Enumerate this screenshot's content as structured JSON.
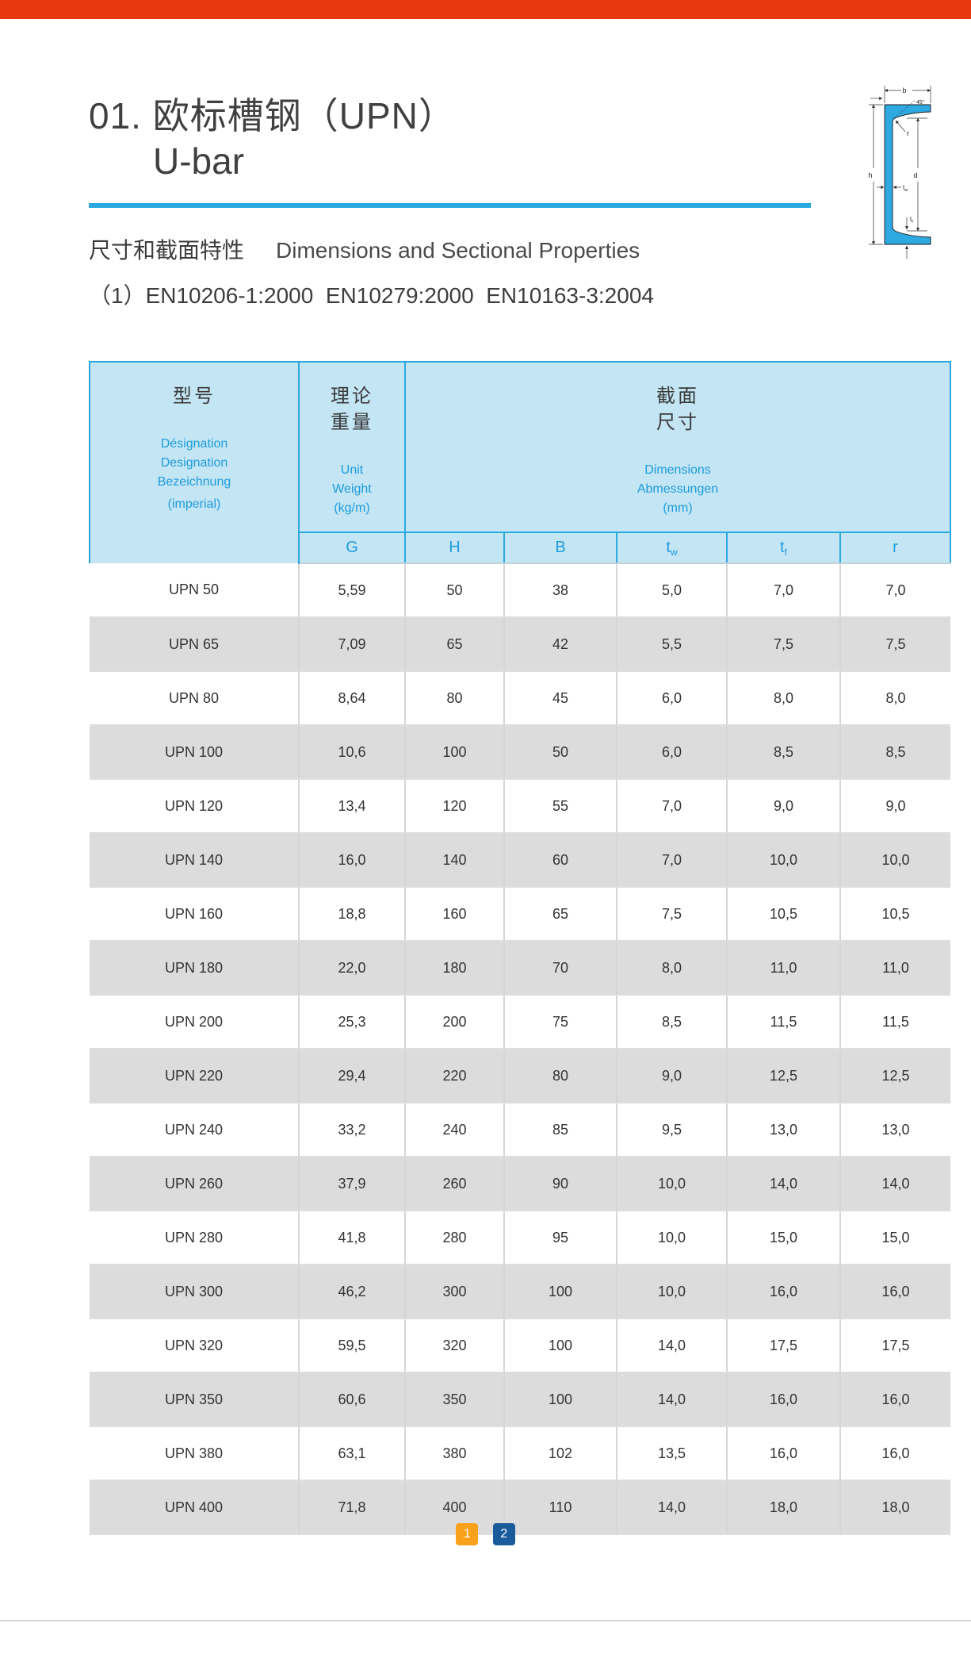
{
  "header": {
    "title_cn": "01. 欧标槽钢（UPN）",
    "title_en": "U-bar"
  },
  "section": {
    "heading_cn": "尺寸和截面特性",
    "heading_en": "Dimensions and Sectional Properties",
    "standards": "（1）EN10206-1:2000  EN10279:2000  EN10163-3:2004"
  },
  "diagram": {
    "b": "b",
    "h": "h",
    "d": "d",
    "r": "r",
    "angle": "45°",
    "tw_main": "t",
    "tw_sub": "w",
    "tf_main": "t",
    "tf_sub": "f",
    "fill_color": "#2fa9e1"
  },
  "table": {
    "header": {
      "designation_cn": "型号",
      "designation_sub": [
        "Désignation",
        "Designation",
        "Bezeichnung",
        "(imperial)"
      ],
      "weight_cn": [
        "理论",
        "重量"
      ],
      "weight_sub": [
        "Unit",
        "Weight",
        "(kg/m)"
      ],
      "dimensions_cn": [
        "截面",
        "尺寸"
      ],
      "dimensions_sub": [
        "Dimensions",
        "Abmessungen",
        "(mm)"
      ]
    },
    "columns": [
      {
        "main": "G",
        "sub": ""
      },
      {
        "main": "H",
        "sub": ""
      },
      {
        "main": "B",
        "sub": ""
      },
      {
        "main": "t",
        "sub": "w"
      },
      {
        "main": "t",
        "sub": "f"
      },
      {
        "main": "r",
        "sub": ""
      }
    ],
    "rows": [
      {
        "name": "UPN 50",
        "g": "5,59",
        "h": "50",
        "b": "38",
        "tw": "5,0",
        "tf": "7,0",
        "r": "7,0"
      },
      {
        "name": "UPN 65",
        "g": "7,09",
        "h": "65",
        "b": "42",
        "tw": "5,5",
        "tf": "7,5",
        "r": "7,5"
      },
      {
        "name": "UPN 80",
        "g": "8,64",
        "h": "80",
        "b": "45",
        "tw": "6,0",
        "tf": "8,0",
        "r": "8,0"
      },
      {
        "name": "UPN 100",
        "g": "10,6",
        "h": "100",
        "b": "50",
        "tw": "6,0",
        "tf": "8,5",
        "r": "8,5"
      },
      {
        "name": "UPN 120",
        "g": "13,4",
        "h": "120",
        "b": "55",
        "tw": "7,0",
        "tf": "9,0",
        "r": "9,0"
      },
      {
        "name": "UPN 140",
        "g": "16,0",
        "h": "140",
        "b": "60",
        "tw": "7,0",
        "tf": "10,0",
        "r": "10,0"
      },
      {
        "name": "UPN 160",
        "g": "18,8",
        "h": "160",
        "b": "65",
        "tw": "7,5",
        "tf": "10,5",
        "r": "10,5"
      },
      {
        "name": "UPN 180",
        "g": "22,0",
        "h": "180",
        "b": "70",
        "tw": "8,0",
        "tf": "11,0",
        "r": "11,0"
      },
      {
        "name": "UPN 200",
        "g": "25,3",
        "h": "200",
        "b": "75",
        "tw": "8,5",
        "tf": "11,5",
        "r": "11,5"
      },
      {
        "name": "UPN 220",
        "g": "29,4",
        "h": "220",
        "b": "80",
        "tw": "9,0",
        "tf": "12,5",
        "r": "12,5"
      },
      {
        "name": "UPN 240",
        "g": "33,2",
        "h": "240",
        "b": "85",
        "tw": "9,5",
        "tf": "13,0",
        "r": "13,0"
      },
      {
        "name": "UPN 260",
        "g": "37,9",
        "h": "260",
        "b": "90",
        "tw": "10,0",
        "tf": "14,0",
        "r": "14,0"
      },
      {
        "name": "UPN 280",
        "g": "41,8",
        "h": "280",
        "b": "95",
        "tw": "10,0",
        "tf": "15,0",
        "r": "15,0"
      },
      {
        "name": "UPN 300",
        "g": "46,2",
        "h": "300",
        "b": "100",
        "tw": "10,0",
        "tf": "16,0",
        "r": "16,0"
      },
      {
        "name": "UPN 320",
        "g": "59,5",
        "h": "320",
        "b": "100",
        "tw": "14,0",
        "tf": "17,5",
        "r": "17,5"
      },
      {
        "name": "UPN 350",
        "g": "60,6",
        "h": "350",
        "b": "100",
        "tw": "14,0",
        "tf": "16,0",
        "r": "16,0"
      },
      {
        "name": "UPN 380",
        "g": "63,1",
        "h": "380",
        "b": "102",
        "tw": "13,5",
        "tf": "16,0",
        "r": "16,0"
      },
      {
        "name": "UPN 400",
        "g": "71,8",
        "h": "400",
        "b": "110",
        "tw": "14,0",
        "tf": "18,0",
        "r": "18,0"
      }
    ]
  },
  "pagination": {
    "pages": [
      {
        "label": "1",
        "active": true
      },
      {
        "label": "2",
        "active": false
      }
    ]
  },
  "colors": {
    "accent_blue": "#29a9e0",
    "header_bg": "#c3e5f4",
    "blue_text": "#1e9cdb",
    "row_alt": "#dcdcdc",
    "page_active": "#f9a11b",
    "page_inactive": "#1a5b9c",
    "top_bar_red": "#e8380d"
  }
}
